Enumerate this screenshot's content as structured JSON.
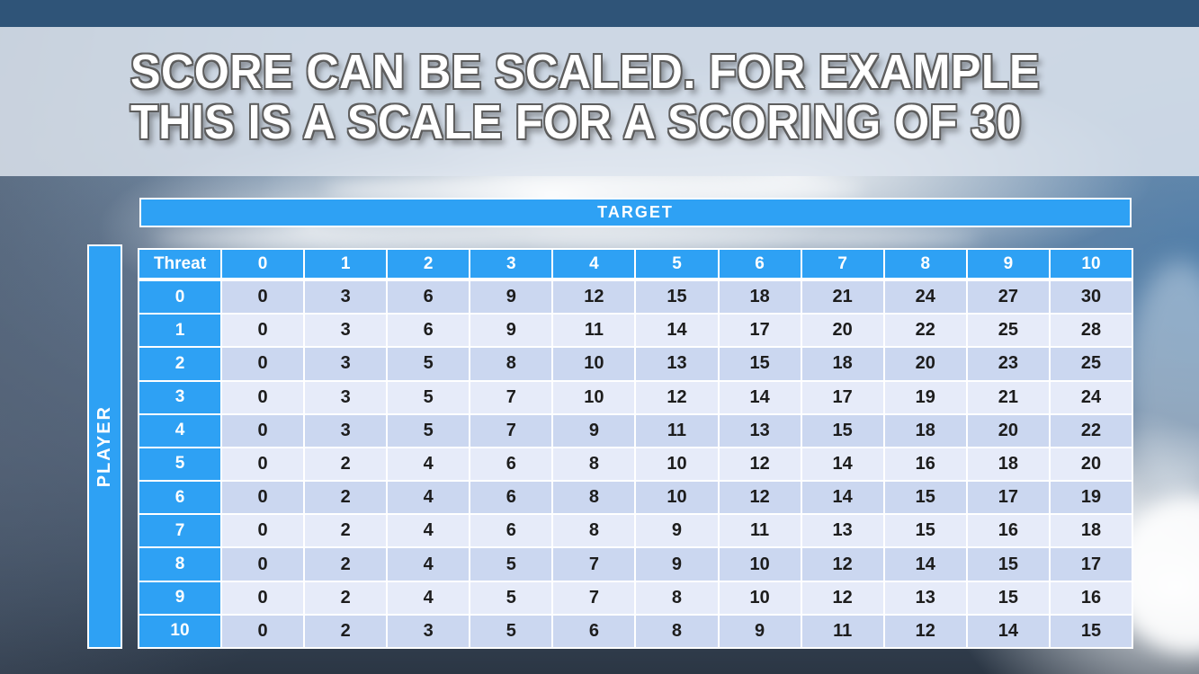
{
  "slide": {
    "title_line1": "SCORE CAN BE SCALED. FOR EXAMPLE",
    "title_line2": "THIS IS A SCALE FOR A SCORING OF 30"
  },
  "matrix": {
    "top_label": "TARGET",
    "side_label": "PLAYER",
    "corner_label": "Threat",
    "col_headers": [
      "0",
      "1",
      "2",
      "3",
      "4",
      "5",
      "6",
      "7",
      "8",
      "9",
      "10"
    ],
    "row_headers": [
      "0",
      "1",
      "2",
      "3",
      "4",
      "5",
      "6",
      "7",
      "8",
      "9",
      "10"
    ],
    "values": [
      [
        0,
        3,
        6,
        9,
        12,
        15,
        18,
        21,
        24,
        27,
        30
      ],
      [
        0,
        3,
        6,
        9,
        11,
        14,
        17,
        20,
        22,
        25,
        28
      ],
      [
        0,
        3,
        5,
        8,
        10,
        13,
        15,
        18,
        20,
        23,
        25
      ],
      [
        0,
        3,
        5,
        7,
        10,
        12,
        14,
        17,
        19,
        21,
        24
      ],
      [
        0,
        3,
        5,
        7,
        9,
        11,
        13,
        15,
        18,
        20,
        22
      ],
      [
        0,
        2,
        4,
        6,
        8,
        10,
        12,
        14,
        16,
        18,
        20
      ],
      [
        0,
        2,
        4,
        6,
        8,
        10,
        12,
        14,
        15,
        17,
        19
      ],
      [
        0,
        2,
        4,
        6,
        8,
        9,
        11,
        13,
        15,
        16,
        18
      ],
      [
        0,
        2,
        4,
        5,
        7,
        9,
        10,
        12,
        14,
        15,
        17
      ],
      [
        0,
        2,
        4,
        5,
        7,
        8,
        10,
        12,
        13,
        15,
        16
      ],
      [
        0,
        2,
        3,
        5,
        6,
        8,
        9,
        11,
        12,
        14,
        15
      ]
    ]
  },
  "colors": {
    "accent_blue": "#2ea1f4",
    "row_band_even": "#cbd7f0",
    "row_band_odd": "#e6ebf9",
    "top_strip": "#2f5478",
    "cell_text": "#1d1d1d"
  }
}
